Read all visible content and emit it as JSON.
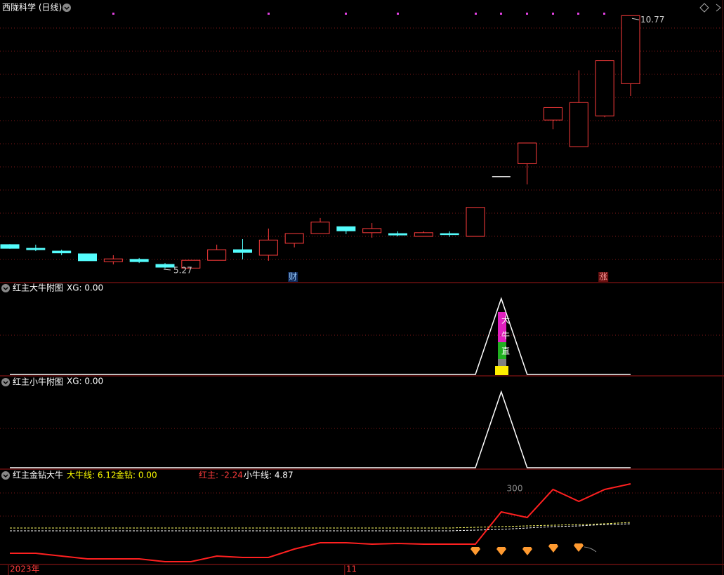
{
  "chart_data": [
    {
      "type": "candlestick",
      "title": "西陇科学 (日线)",
      "categories": [
        "2023年",
        null,
        null,
        null,
        null,
        null,
        null,
        null,
        null,
        null,
        null,
        null,
        null,
        "11",
        null,
        null,
        null,
        null,
        null,
        null,
        null,
        null,
        null,
        null,
        null
      ],
      "open": [
        5.79,
        5.71,
        5.65,
        5.59,
        5.42,
        5.47,
        5.36,
        5.28,
        5.45,
        5.68,
        5.56,
        5.82,
        6.03,
        6.18,
        6.05,
        6.03,
        5.97,
        6.03,
        5.97,
        7.27,
        7.55,
        8.5,
        7.92,
        8.59,
        9.29
      ],
      "high": [
        5.8,
        5.79,
        5.68,
        5.59,
        5.56,
        5.5,
        5.39,
        5.45,
        5.79,
        5.91,
        6.14,
        6.03,
        6.37,
        6.18,
        6.26,
        6.08,
        6.08,
        6.08,
        6.6,
        7.27,
        8.0,
        8.77,
        9.58,
        9.79,
        10.77
      ],
      "low": [
        5.7,
        5.65,
        5.56,
        5.44,
        5.36,
        5.39,
        5.27,
        5.28,
        5.45,
        5.47,
        5.44,
        5.73,
        6.03,
        6.02,
        5.94,
        5.97,
        5.97,
        5.96,
        5.97,
        7.27,
        7.1,
        8.3,
        7.92,
        8.56,
        9.02
      ],
      "close": [
        5.71,
        5.68,
        5.61,
        5.44,
        5.48,
        5.42,
        5.3,
        5.45,
        5.68,
        5.62,
        5.89,
        6.03,
        6.28,
        6.09,
        6.14,
        6.0,
        6.05,
        6.02,
        6.6,
        7.27,
        8.0,
        8.77,
        8.88,
        9.79,
        10.77
      ],
      "event_labels": [
        null,
        null,
        null,
        null,
        null,
        null,
        null,
        null,
        null,
        null,
        null,
        "财",
        null,
        null,
        null,
        null,
        null,
        null,
        null,
        null,
        null,
        null,
        null,
        "涨",
        null
      ],
      "up_color": "#ff3c3c",
      "down_color": "#54fcfc",
      "flat_color": "#ffffff",
      "ylim": [
        4.98,
        11.11
      ]
    },
    {
      "type": "line",
      "title": "红主大牛附图",
      "legend": [
        {
          "text": "XG: 0.00",
          "color": "#ffffff"
        }
      ],
      "series": [
        {
          "color": "#ffffff",
          "style": "solid",
          "values": [
            0,
            0,
            0,
            0,
            0,
            0,
            0,
            0,
            0,
            0,
            0,
            0,
            0,
            0,
            0,
            0,
            0,
            0,
            0,
            1,
            0,
            0,
            0,
            0,
            0
          ]
        }
      ],
      "badge": [
        "大",
        "牛",
        "直"
      ],
      "ylim": [
        0,
        1.2
      ]
    },
    {
      "type": "line",
      "title": "红主小牛附图",
      "legend": [
        {
          "text": "XG: 0.00",
          "color": "#ffffff"
        }
      ],
      "series": [
        {
          "color": "#ffffff",
          "style": "solid",
          "values": [
            0,
            0,
            0,
            0,
            0,
            0,
            0,
            0,
            0,
            0,
            0,
            0,
            0,
            0,
            0,
            0,
            0,
            0,
            0,
            1,
            0,
            0,
            0,
            0,
            0
          ]
        }
      ],
      "ylim": [
        0,
        1.2
      ]
    },
    {
      "type": "line",
      "title": "红主金钻大牛",
      "legend": [
        {
          "text": "大牛线: 6.12",
          "color": "#ffff00"
        },
        {
          "text": "金钻: 0.00",
          "color": "#ffff00"
        },
        {
          "text": "红主: -2.24",
          "color": "#ff3c3c"
        },
        {
          "text": "小牛线: 4.87",
          "color": "#ffffff"
        }
      ],
      "series": [
        {
          "color": "#ff2020",
          "style": "solid",
          "values": [
            16,
            16,
            12,
            8,
            8,
            8,
            4,
            4,
            12,
            10,
            10,
            22,
            31,
            31,
            29,
            30,
            29,
            29,
            29,
            75,
            67,
            107,
            90,
            107,
            115
          ]
        },
        {
          "color": "#ffff66",
          "style": "dashed",
          "values": [
            52,
            52,
            52,
            52,
            52,
            52,
            52,
            52,
            52,
            52,
            52,
            52,
            52,
            52,
            52,
            52,
            52,
            52,
            53,
            54,
            55,
            56,
            57,
            58,
            60
          ]
        },
        {
          "color": "#ffffff",
          "style": "dashed",
          "values": [
            48,
            48,
            48,
            48,
            48,
            48,
            48,
            48,
            48,
            48,
            48,
            48,
            48,
            48,
            48,
            48,
            48,
            48,
            49,
            50,
            52,
            54,
            55,
            57,
            58
          ]
        }
      ],
      "note": "300",
      "ylim": [
        0,
        133
      ]
    }
  ]
}
